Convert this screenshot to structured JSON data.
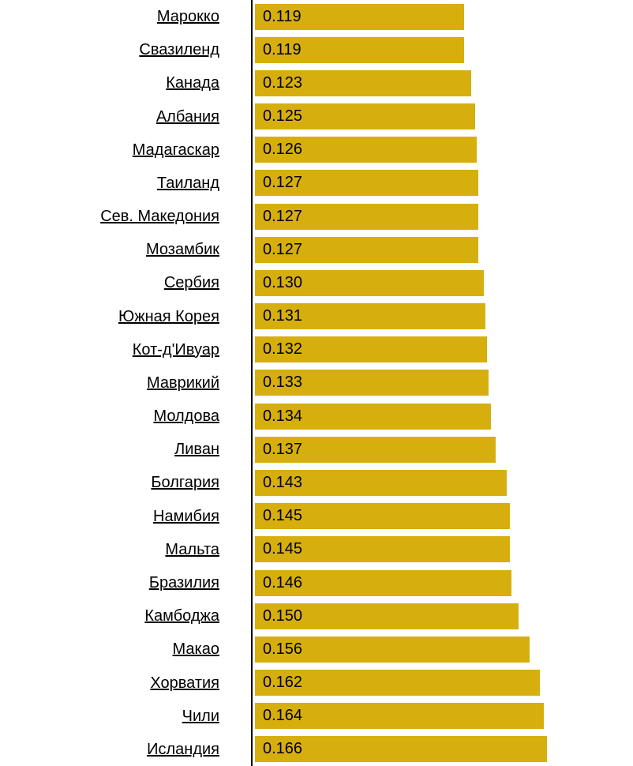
{
  "page": {
    "background_color": "#ffffff"
  },
  "chart_data": {
    "type": "bar",
    "orientation": "horizontal",
    "title": "",
    "xlabel": "",
    "ylabel": "",
    "legend_position": "none",
    "grid": false,
    "xlim": [
      0,
      0.2154
    ],
    "bar_color": "#D6AF0E",
    "axis_color": "#000000",
    "label_color": "#000000",
    "value_text_color": "#000000",
    "categories": [
      "Марокко",
      "Свазиленд",
      "Канада",
      "Албания",
      "Мадагаскар",
      "Таиланд",
      "Сев. Македония",
      "Мозамбик",
      "Сербия",
      "Южная Корея",
      "Кот-д'Ивуар",
      "Маврикий",
      "Молдова",
      "Ливан",
      "Болгария",
      "Намибия",
      "Мальта",
      "Бразилия",
      "Камбоджа",
      "Макао",
      "Хорватия",
      "Чили",
      "Исландия"
    ],
    "values": [
      0.119,
      0.119,
      0.123,
      0.125,
      0.126,
      0.127,
      0.127,
      0.127,
      0.13,
      0.131,
      0.132,
      0.133,
      0.134,
      0.137,
      0.143,
      0.145,
      0.145,
      0.146,
      0.15,
      0.156,
      0.162,
      0.164,
      0.166
    ],
    "value_labels": [
      "0.119",
      "0.119",
      "0.123",
      "0.125",
      "0.126",
      "0.127",
      "0.127",
      "0.127",
      "0.130",
      "0.131",
      "0.132",
      "0.133",
      "0.134",
      "0.137",
      "0.143",
      "0.145",
      "0.145",
      "0.146",
      "0.150",
      "0.156",
      "0.162",
      "0.164",
      "0.166"
    ]
  }
}
